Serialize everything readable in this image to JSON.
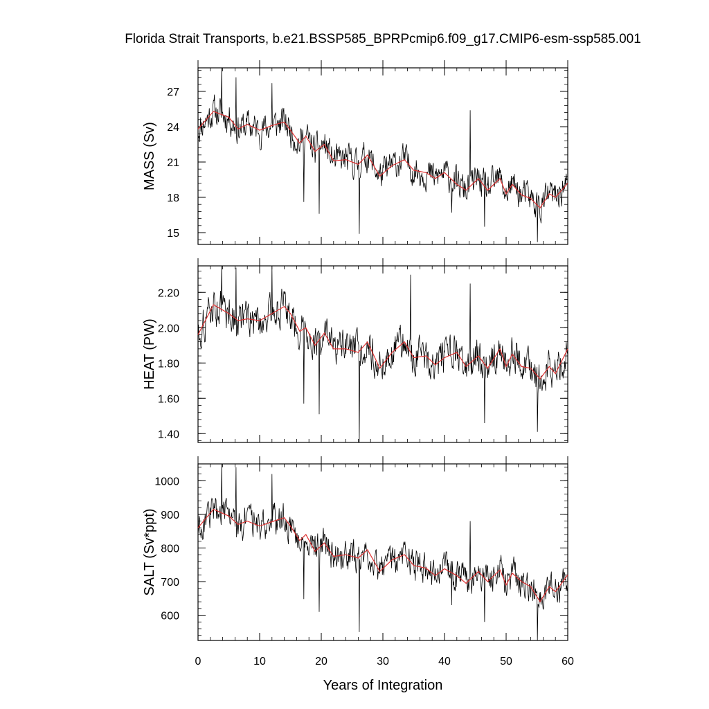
{
  "title": "Florida Strait Transports, b.e21.BSSP585_BPRPcmip6.f09_g17.CMIP6-esm-ssp585.001",
  "colors": {
    "series_raw": "#000000",
    "series_smooth": "#e03030",
    "frame": "#000000"
  },
  "chart_data": [
    {
      "type": "line",
      "ylabel": "MASS (Sv)",
      "xlim": [
        0,
        60
      ],
      "ylim": [
        14,
        29
      ],
      "yticks": [
        15,
        18,
        21,
        24,
        27
      ],
      "ytick_labels": [
        "15",
        "18",
        "21",
        "24",
        "27"
      ],
      "xticks": [
        0,
        10,
        20,
        30,
        40,
        50,
        60
      ],
      "smooth_knots": {
        "x": [
          0,
          2.5,
          5,
          6.5,
          8,
          10,
          12,
          14,
          15,
          16.5,
          17.5,
          19,
          20.5,
          22,
          24,
          26,
          27.5,
          29.5,
          31.5,
          33.5,
          35,
          37,
          38.5,
          40,
          42,
          43.5,
          45.5,
          47,
          49,
          50,
          51,
          52.5,
          54,
          55.5,
          57,
          58,
          60
        ],
        "y": [
          23.8,
          25.3,
          24.8,
          23.8,
          24.2,
          23.7,
          24.1,
          24.4,
          23.7,
          22.6,
          23.2,
          21.9,
          22.5,
          21.1,
          21.2,
          20.8,
          21.6,
          19.8,
          20.7,
          21.2,
          20.3,
          20.1,
          19.6,
          20.1,
          19.1,
          18.6,
          19.6,
          18.6,
          19.6,
          18.3,
          19.1,
          18.2,
          17.9,
          17.1,
          18.3,
          18.0,
          19.2
        ]
      },
      "spikes": [
        {
          "x": 3.8,
          "y": 29.0
        },
        {
          "x": 6.2,
          "y": 28.2
        },
        {
          "x": 12.0,
          "y": 27.7
        },
        {
          "x": 17.2,
          "y": 17.6
        },
        {
          "x": 19.7,
          "y": 16.6
        },
        {
          "x": 26.2,
          "y": 14.9
        },
        {
          "x": 41.2,
          "y": 16.7
        },
        {
          "x": 44.2,
          "y": 25.4
        },
        {
          "x": 46.5,
          "y": 15.5
        },
        {
          "x": 55.1,
          "y": 14.2
        }
      ],
      "noise_amp": 1.35,
      "seed": 11
    },
    {
      "type": "line",
      "ylabel": "HEAT (PW)",
      "xlim": [
        0,
        60
      ],
      "ylim": [
        1.35,
        2.35
      ],
      "yticks": [
        1.4,
        1.6,
        1.8,
        2.0,
        2.2
      ],
      "ytick_labels": [
        "1.40",
        "1.60",
        "1.80",
        "2.00",
        "2.20"
      ],
      "xticks": [
        0,
        10,
        20,
        30,
        40,
        50,
        60
      ],
      "smooth_knots": {
        "x": [
          0,
          2.5,
          5,
          6.5,
          8,
          10,
          12,
          14,
          15,
          16.5,
          17.5,
          19,
          20.5,
          22,
          24,
          26,
          27.5,
          29.5,
          31.5,
          33.5,
          35,
          37,
          38.5,
          40,
          42,
          43.5,
          45.5,
          47,
          49,
          50,
          51,
          52.5,
          54,
          55.5,
          57,
          58,
          60
        ],
        "y": [
          1.96,
          2.13,
          2.08,
          2.04,
          2.05,
          2.04,
          2.08,
          2.12,
          2.08,
          1.98,
          2.0,
          1.9,
          1.97,
          1.88,
          1.88,
          1.86,
          1.92,
          1.77,
          1.86,
          1.92,
          1.83,
          1.84,
          1.79,
          1.83,
          1.86,
          1.78,
          1.84,
          1.77,
          1.88,
          1.78,
          1.85,
          1.78,
          1.77,
          1.71,
          1.78,
          1.74,
          1.88
        ]
      },
      "spikes": [
        {
          "x": 3.8,
          "y": 2.35
        },
        {
          "x": 6.2,
          "y": 2.34
        },
        {
          "x": 12.0,
          "y": 2.35
        },
        {
          "x": 17.2,
          "y": 1.57
        },
        {
          "x": 19.7,
          "y": 1.51
        },
        {
          "x": 26.2,
          "y": 1.35
        },
        {
          "x": 34.5,
          "y": 2.3
        },
        {
          "x": 44.2,
          "y": 2.25
        },
        {
          "x": 46.5,
          "y": 1.46
        },
        {
          "x": 55.1,
          "y": 1.41
        }
      ],
      "noise_amp": 0.105,
      "seed": 11
    },
    {
      "type": "line",
      "ylabel": "SALT (Sv*ppt)",
      "xlabel": "Years of Integration",
      "xlim": [
        0,
        60
      ],
      "ylim": [
        525,
        1050
      ],
      "yticks": [
        600,
        700,
        800,
        900,
        1000
      ],
      "ytick_labels": [
        "600",
        "700",
        "800",
        "900",
        "1000"
      ],
      "xticks": [
        0,
        10,
        20,
        30,
        40,
        50,
        60
      ],
      "xtick_labels": [
        "0",
        "10",
        "20",
        "30",
        "40",
        "50",
        "60"
      ],
      "smooth_knots": {
        "x": [
          0,
          2.5,
          5,
          6.5,
          8,
          10,
          12,
          14,
          15,
          16.5,
          17.5,
          19,
          20.5,
          22,
          24,
          26,
          27.5,
          29.5,
          31.5,
          33.5,
          35,
          37,
          38.5,
          40,
          42,
          43.5,
          45.5,
          47,
          49,
          50,
          51,
          52.5,
          54,
          55.5,
          57,
          58,
          60
        ],
        "y": [
          860,
          915,
          895,
          870,
          880,
          865,
          878,
          890,
          865,
          822,
          840,
          790,
          815,
          775,
          780,
          770,
          795,
          730,
          765,
          780,
          748,
          740,
          718,
          738,
          718,
          695,
          730,
          700,
          735,
          690,
          725,
          700,
          685,
          640,
          685,
          670,
          720
        ]
      },
      "spikes": [
        {
          "x": 3.8,
          "y": 1050
        },
        {
          "x": 6.2,
          "y": 1040
        },
        {
          "x": 12.0,
          "y": 1020
        },
        {
          "x": 17.2,
          "y": 648
        },
        {
          "x": 19.7,
          "y": 610
        },
        {
          "x": 26.2,
          "y": 550
        },
        {
          "x": 41.2,
          "y": 630
        },
        {
          "x": 44.2,
          "y": 880
        },
        {
          "x": 46.5,
          "y": 580
        },
        {
          "x": 55.1,
          "y": 525
        }
      ],
      "noise_amp": 48,
      "seed": 11
    }
  ]
}
